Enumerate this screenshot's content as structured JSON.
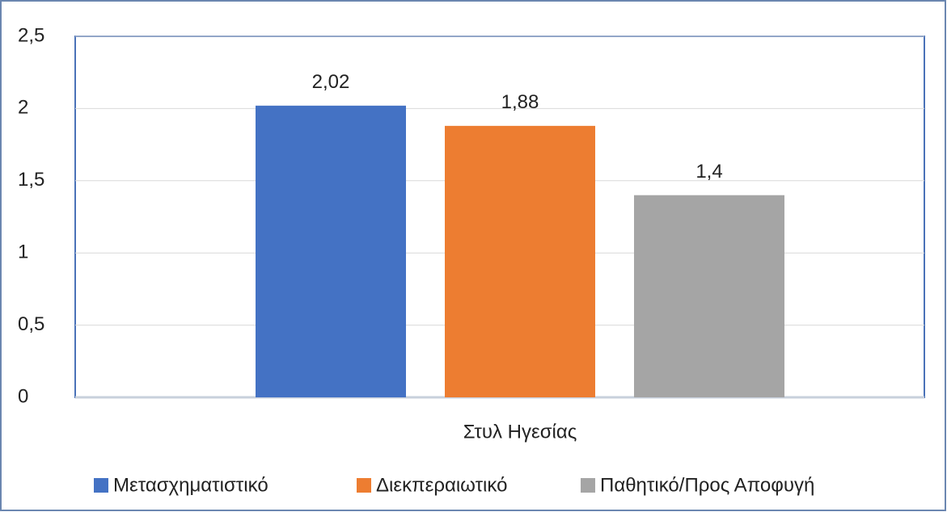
{
  "chart_data": {
    "type": "bar",
    "categories": [
      "Στυλ Ηγεσίας"
    ],
    "series": [
      {
        "name": "Μετασχηματιστικό",
        "color": "#4472c4",
        "values": [
          2.02
        ],
        "value_labels": [
          "2,02"
        ]
      },
      {
        "name": "Διεκπεραιωτικό",
        "color": "#ed7d31",
        "values": [
          1.88
        ],
        "value_labels": [
          "1,88"
        ]
      },
      {
        "name": "Παθητικό/Προς Αποφυγή",
        "color": "#a5a5a5",
        "values": [
          1.4
        ],
        "value_labels": [
          "1,4"
        ]
      }
    ],
    "ylim": [
      0,
      2.5
    ],
    "yticks": [
      0,
      {
        "value": 0.5,
        "label": "0,5"
      },
      1,
      {
        "value": 1.5,
        "label": "1,5"
      },
      2,
      {
        "value": 2.5,
        "label": "2,5"
      }
    ],
    "grid": true,
    "legend": "bottom"
  }
}
